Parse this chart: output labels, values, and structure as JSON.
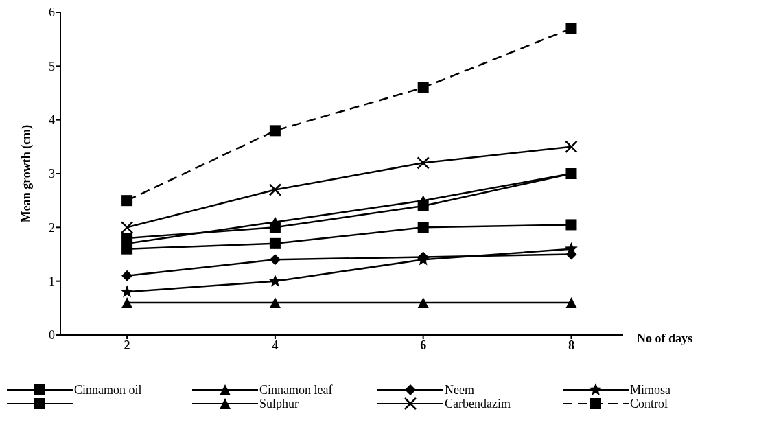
{
  "chart_data": {
    "type": "line",
    "xlabel": "No of days",
    "ylabel": "Mean growth (cm)",
    "categories": [
      "2",
      "4",
      "6",
      "8"
    ],
    "ylim": [
      0,
      6
    ],
    "yticks": [
      0,
      1,
      2,
      3,
      4,
      5,
      6
    ],
    "grid": false,
    "legend": "bottom",
    "series": [
      {
        "name": "Cinnamon oil",
        "color": "#000000",
        "marker": "square",
        "line_style": "solid",
        "values": [
          1.8,
          2.0,
          2.4,
          3.0
        ]
      },
      {
        "name": "Cinnamon leaf",
        "color": "#000000",
        "marker": "triangle",
        "line_style": "solid",
        "values": [
          0.6,
          0.6,
          0.6,
          0.6
        ]
      },
      {
        "name": "Neem",
        "color": "#000000",
        "marker": "diamond",
        "line_style": "solid",
        "values": [
          1.1,
          1.4,
          1.45,
          1.5
        ]
      },
      {
        "name": "Mimosa",
        "color": "#000000",
        "marker": "star",
        "line_style": "solid",
        "values": [
          0.8,
          1.0,
          1.4,
          1.6
        ]
      },
      {
        "color": "#000000",
        "marker": "square",
        "line_style": "solid",
        "values": [
          1.6,
          1.7,
          2.0,
          2.05
        ]
      },
      {
        "name": "Sulphur",
        "color": "#000000",
        "marker": "triangle",
        "line_style": "solid",
        "values": [
          1.7,
          2.1,
          2.5,
          3.0
        ]
      },
      {
        "name": "Carbendazim",
        "color": "#000000",
        "marker": "cross",
        "line_style": "solid",
        "values": [
          2.0,
          2.7,
          3.2,
          3.5
        ]
      },
      {
        "name": "Control",
        "color": "#000000",
        "marker": "square",
        "line_style": "dashed",
        "values": [
          2.5,
          3.8,
          4.6,
          5.7
        ]
      }
    ]
  }
}
